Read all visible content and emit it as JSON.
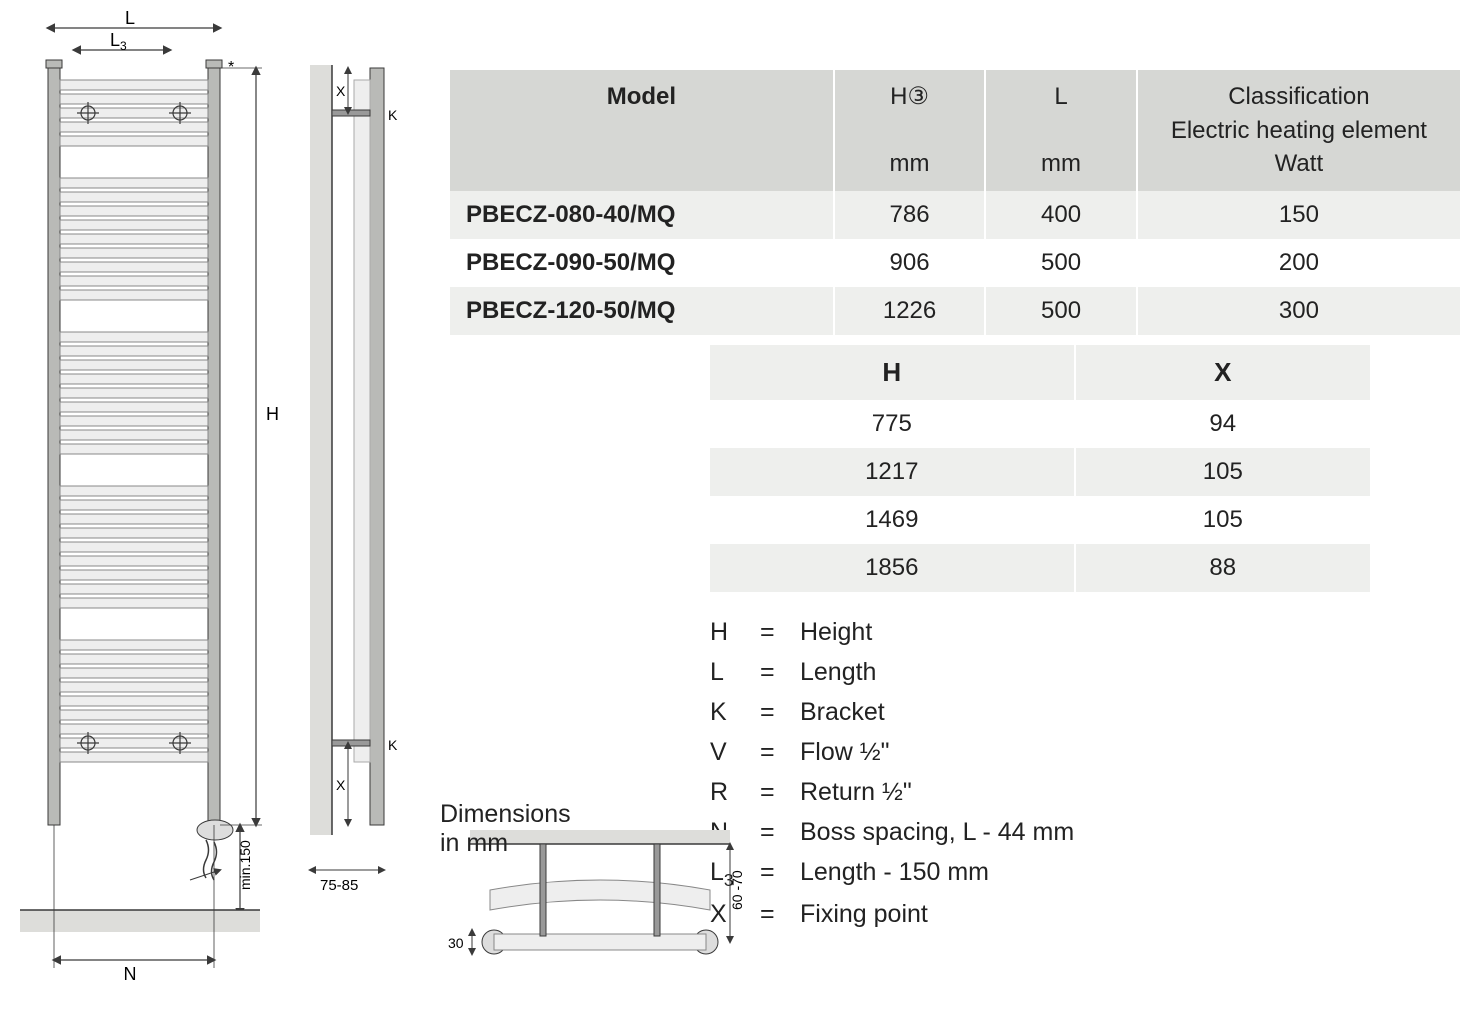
{
  "colors": {
    "table_header_bg": "#d6d7d4",
    "table_stripe_bg": "#eeefed",
    "table_bg": "#ffffff",
    "text": "#222222",
    "drawing_stroke": "#3a3a3a",
    "drawing_fill": "#b9bab7"
  },
  "models_table": {
    "headers": {
      "model": "Model",
      "h": "H③",
      "l": "L",
      "class_line1": "Classification",
      "class_line2": "Electric heating element",
      "unit_mm": "mm",
      "unit_watt": "Watt"
    },
    "col_widths_pct": [
      38,
      15,
      15,
      32
    ],
    "rows": [
      {
        "model": "PBECZ-080-40/MQ",
        "h": "786",
        "l": "400",
        "watt": "150"
      },
      {
        "model": "PBECZ-090-50/MQ",
        "h": "906",
        "l": "500",
        "watt": "200"
      },
      {
        "model": "PBECZ-120-50/MQ",
        "h": "1226",
        "l": "500",
        "watt": "300"
      }
    ]
  },
  "hx_table": {
    "headers": {
      "h": "H",
      "x": "X"
    },
    "rows": [
      {
        "h": "775",
        "x": "94"
      },
      {
        "h": "1217",
        "x": "105"
      },
      {
        "h": "1469",
        "x": "105"
      },
      {
        "h": "1856",
        "x": "88"
      }
    ]
  },
  "legend": [
    {
      "sym": "H",
      "def": "Height"
    },
    {
      "sym": "L",
      "def": "Length"
    },
    {
      "sym": "K",
      "def": "Bracket"
    },
    {
      "sym": "V",
      "def": "Flow ½\""
    },
    {
      "sym": "R",
      "def": "Return ½\""
    },
    {
      "sym": "N",
      "def": "Boss spacing, L - 44 mm"
    },
    {
      "sym": "L3",
      "def": "Length - 150 mm",
      "sub": true
    },
    {
      "sym": "X",
      "def": "Fixing point"
    }
  ],
  "drawing": {
    "caption": "Dimensions in mm",
    "labels": {
      "L": "L",
      "L3": "L",
      "L3sub": "3",
      "H": "H",
      "N": "N",
      "X": "X",
      "K": "K",
      "min150": "min.150",
      "depth": "75-85",
      "tube": "30",
      "wall": "60 -70",
      "star": "*"
    }
  }
}
